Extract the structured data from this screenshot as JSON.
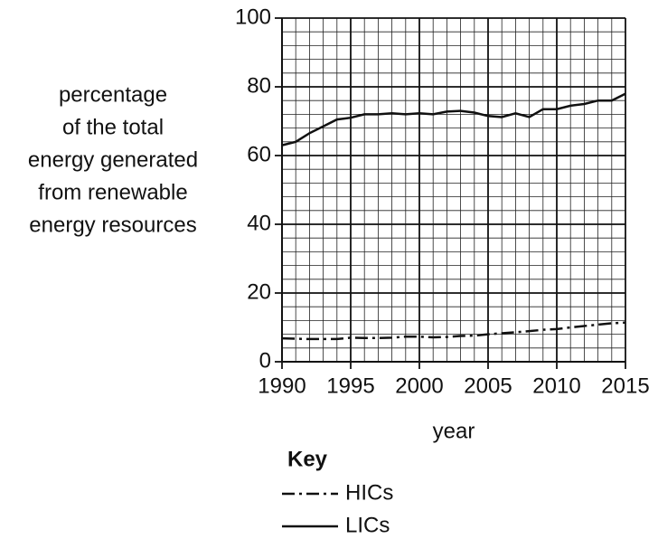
{
  "chart_data": {
    "type": "line",
    "xlabel": "year",
    "ylabel": [
      "percentage",
      "of the total",
      "energy generated",
      "from renewable",
      "energy resources"
    ],
    "legend_title": "Key",
    "x": [
      1990,
      1991,
      1992,
      1993,
      1994,
      1995,
      1996,
      1997,
      1998,
      1999,
      2000,
      2001,
      2002,
      2003,
      2004,
      2005,
      2006,
      2007,
      2008,
      2009,
      2010,
      2011,
      2012,
      2013,
      2014,
      2015
    ],
    "series": [
      {
        "name": "HICs",
        "color": "#111111",
        "linestyle": "dashdot",
        "values": [
          6.8,
          6.7,
          6.6,
          6.6,
          6.6,
          7.0,
          6.9,
          6.9,
          7.0,
          7.3,
          7.3,
          7.1,
          7.2,
          7.5,
          7.6,
          8.0,
          8.3,
          8.6,
          8.9,
          9.3,
          9.5,
          10.0,
          10.4,
          10.8,
          11.2,
          11.4
        ]
      },
      {
        "name": "LICs",
        "color": "#111111",
        "linestyle": "solid",
        "values": [
          63,
          64,
          66.5,
          68.5,
          70.5,
          71,
          72,
          72,
          72.3,
          72,
          72.3,
          72,
          72.8,
          73,
          72.5,
          71.5,
          71.2,
          72.3,
          71.2,
          73.5,
          73.5,
          74.5,
          75,
          76,
          76,
          78
        ]
      }
    ],
    "xlim": [
      1990,
      2015
    ],
    "xticks": [
      1990,
      1995,
      2000,
      2005,
      2010,
      2015
    ],
    "ylim": [
      0,
      100
    ],
    "yticks": [
      0,
      20,
      40,
      60,
      80,
      100
    ],
    "grid": true
  }
}
